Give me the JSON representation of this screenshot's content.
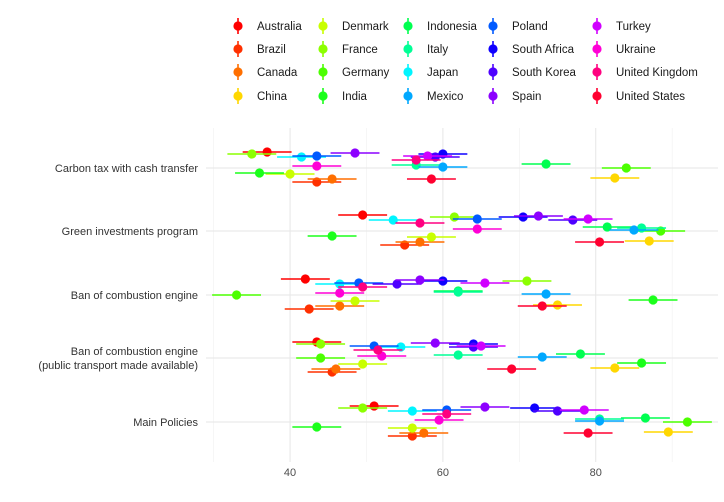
{
  "chart_data": {
    "type": "scatter",
    "subtype": "dot-with-error-bars",
    "title": "",
    "xlabel": "",
    "ylabel": "",
    "xlim": [
      29,
      96
    ],
    "x_ticks": [
      40,
      60,
      80
    ],
    "grid": true,
    "legend_position": "top",
    "categories": [
      "Carbon tax with cash transfer",
      "Green investments program",
      "Ban of combustion engine",
      "Ban of combustion engine\n(public transport made available)",
      "Main Policies"
    ],
    "series": [
      {
        "name": "Australia",
        "color": "#FF0000",
        "values": [
          37.0,
          49.5,
          42.0,
          43.5,
          51.0
        ]
      },
      {
        "name": "Brazil",
        "color": "#FF3000",
        "values": [
          43.5,
          55.0,
          42.5,
          45.5,
          56.0
        ]
      },
      {
        "name": "Canada",
        "color": "#FF6F00",
        "values": [
          45.5,
          57.0,
          46.5,
          46.0,
          57.5
        ]
      },
      {
        "name": "China",
        "color": "#FFD700",
        "values": [
          82.5,
          87.0,
          75.0,
          82.5,
          89.5
        ]
      },
      {
        "name": "Denmark",
        "color": "#C8FF00",
        "values": [
          40.0,
          58.5,
          48.5,
          49.5,
          56.0
        ]
      },
      {
        "name": "France",
        "color": "#8CFF00",
        "values": [
          35.0,
          61.5,
          71.0,
          44.0,
          49.5
        ]
      },
      {
        "name": "Germany",
        "color": "#4CFF00",
        "values": [
          84.0,
          88.5,
          33.0,
          44.0,
          92.0
        ]
      },
      {
        "name": "India",
        "color": "#1BFF1B",
        "values": [
          36.0,
          45.5,
          87.5,
          86.0,
          43.5
        ]
      },
      {
        "name": "Indonesia",
        "color": "#00FF50",
        "values": [
          73.5,
          81.5,
          62.0,
          78.0,
          86.5
        ]
      },
      {
        "name": "Italy",
        "color": "#00FF96",
        "values": [
          56.5,
          86.0,
          62.0,
          62.0,
          80.5
        ]
      },
      {
        "name": "Japan",
        "color": "#00F5FF",
        "values": [
          41.5,
          53.5,
          46.5,
          54.5,
          56.0
        ]
      },
      {
        "name": "Mexico",
        "color": "#00A8FF",
        "values": [
          60.0,
          85.0,
          73.5,
          73.0,
          80.5
        ]
      },
      {
        "name": "Poland",
        "color": "#005AFF",
        "values": [
          43.5,
          64.5,
          49.0,
          51.0,
          60.5
        ]
      },
      {
        "name": "South Africa",
        "color": "#0F00FF",
        "values": [
          60.0,
          70.5,
          60.0,
          64.0,
          72.0
        ]
      },
      {
        "name": "South Korea",
        "color": "#4D00FF",
        "values": [
          59.0,
          77.0,
          54.0,
          64.0,
          75.0
        ]
      },
      {
        "name": "Spain",
        "color": "#8C00FF",
        "values": [
          48.5,
          72.5,
          57.0,
          59.0,
          65.5
        ]
      },
      {
        "name": "Turkey",
        "color": "#D000FF",
        "values": [
          58.0,
          79.0,
          65.5,
          65.0,
          78.5
        ]
      },
      {
        "name": "Ukraine",
        "color": "#FF00D6",
        "values": [
          43.5,
          64.5,
          46.5,
          52.0,
          59.5
        ]
      },
      {
        "name": "United Kingdom",
        "color": "#FF0080",
        "values": [
          56.5,
          57.0,
          49.5,
          51.5,
          60.5
        ]
      },
      {
        "name": "United States",
        "color": "#FF0030",
        "values": [
          58.5,
          80.5,
          73.0,
          69.0,
          79.0
        ]
      }
    ]
  }
}
